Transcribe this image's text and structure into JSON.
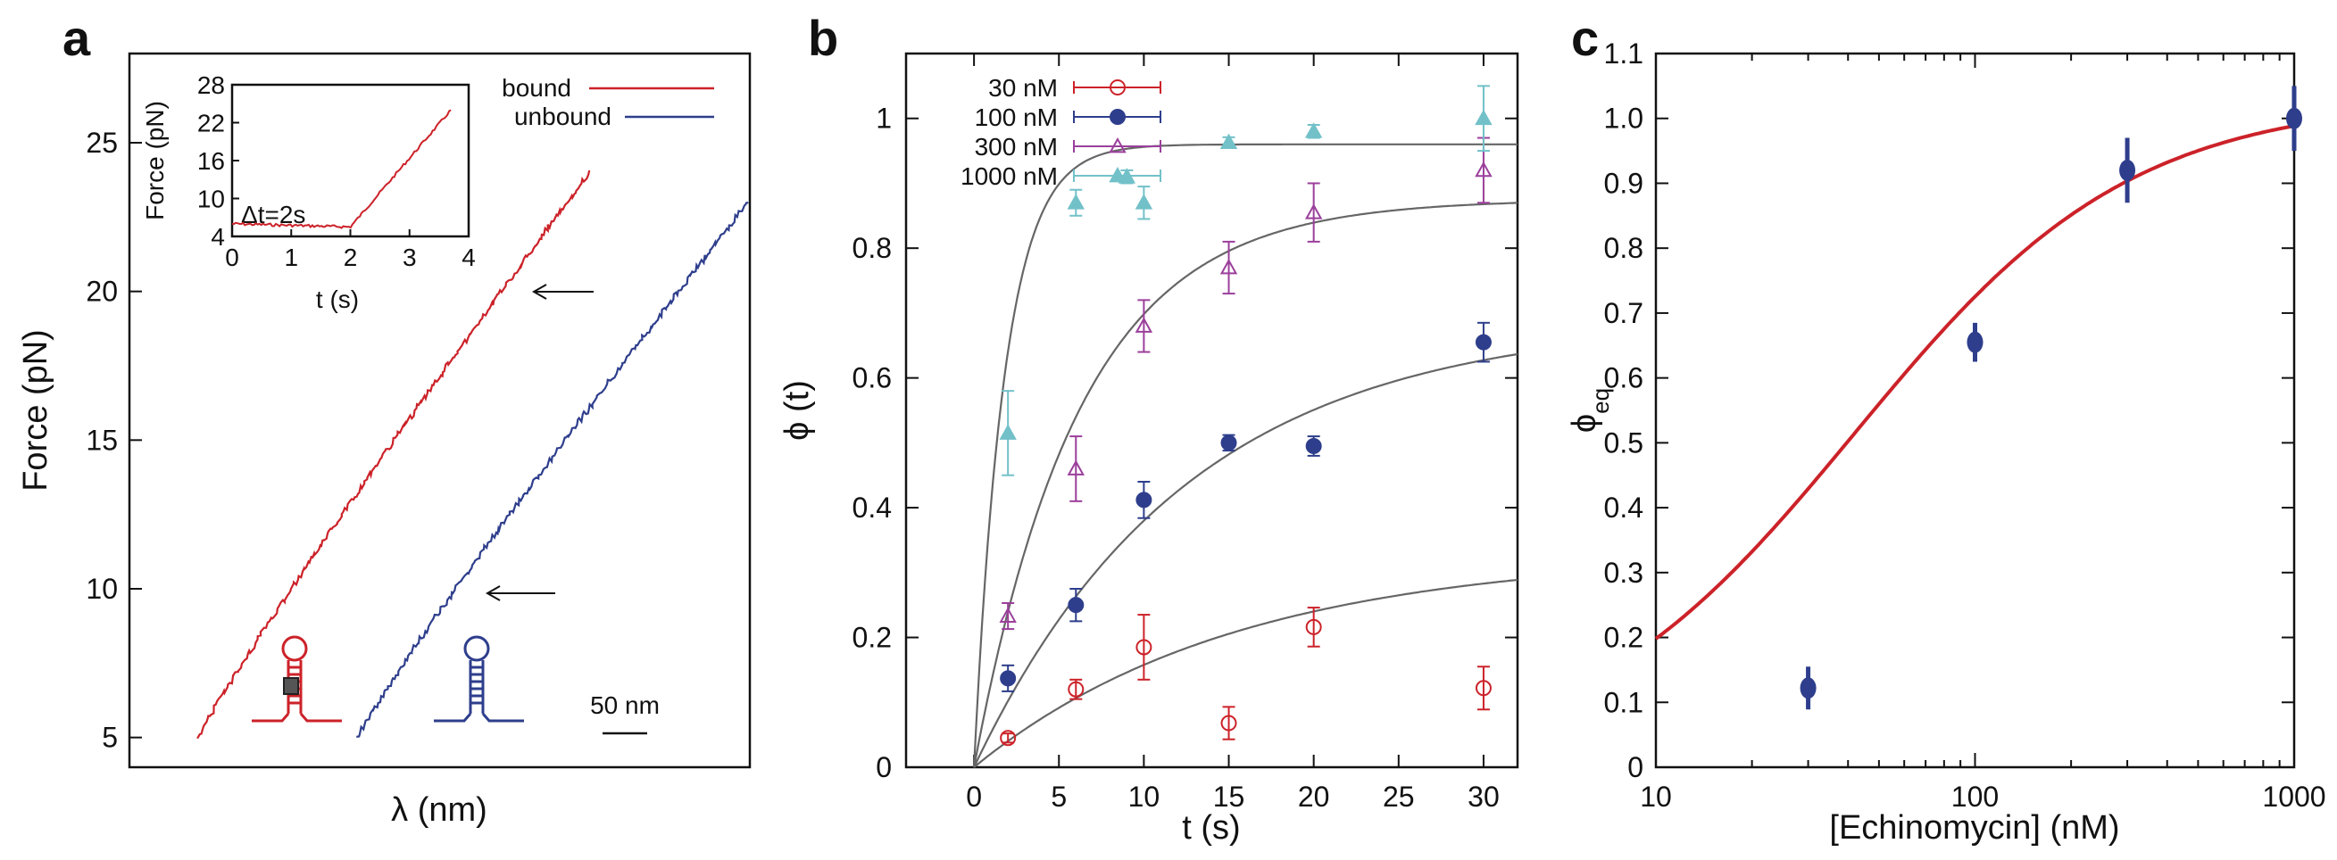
{
  "chart_data": [
    {
      "panel": "a",
      "type": "line",
      "xlabel": "λ (nm)",
      "ylabel": "Force (pN)",
      "ylim": [
        4,
        28
      ],
      "yticks": [
        5,
        10,
        15,
        20,
        25
      ],
      "legend": [
        "bound",
        "unbound"
      ],
      "scale_bar_label": "50 nm",
      "series": [
        {
          "name": "bound",
          "color": "#cc2229",
          "force_range": [
            5,
            24
          ]
        },
        {
          "name": "unbound",
          "color": "#2e3e8c",
          "force_range": [
            5,
            23
          ]
        }
      ],
      "arrows_at_force": [
        20,
        10
      ],
      "inset": {
        "xlabel": "t (s)",
        "ylabel": "Force (pN)",
        "xlim": [
          0,
          4
        ],
        "xticks": [
          0,
          1,
          2,
          3,
          4
        ],
        "ylim": [
          4,
          28
        ],
        "yticks": [
          4,
          10,
          16,
          22,
          28
        ],
        "annotation": "Δt=2s",
        "x": [
          0,
          1.9,
          2.0,
          3.7
        ],
        "y": [
          6,
          5.5,
          5.5,
          24
        ]
      }
    },
    {
      "panel": "b",
      "type": "scatter",
      "xlabel": "t (s)",
      "ylabel": "ϕ (t)",
      "xlim": [
        -4,
        32
      ],
      "xticks": [
        0,
        5,
        10,
        15,
        20,
        25,
        30
      ],
      "ylim": [
        0,
        1.1
      ],
      "yticks": [
        0,
        0.2,
        0.4,
        0.6,
        0.8,
        1
      ],
      "x": [
        2,
        6,
        10,
        15,
        20,
        30
      ],
      "series": [
        {
          "name": "30 nM",
          "color": "#cc2229",
          "marker": "open-circle",
          "values": [
            0.045,
            0.12,
            0.185,
            0.068,
            0.216,
            0.122
          ],
          "errors": [
            0.007,
            0.015,
            0.05,
            0.025,
            0.03,
            0.033
          ],
          "fit": {
            "amplitude": 0.33,
            "rate": 0.065
          }
        },
        {
          "name": "100 nM",
          "color": "#2e3e8c",
          "marker": "filled-circle",
          "values": [
            0.137,
            0.25,
            0.412,
            0.5,
            0.495,
            0.655
          ],
          "errors": [
            0.02,
            0.025,
            0.028,
            0.012,
            0.015,
            0.03
          ],
          "fit": {
            "amplitude": 0.69,
            "rate": 0.08
          }
        },
        {
          "name": "300 nM",
          "color": "#9b3f9b",
          "marker": "open-triangle",
          "values": [
            0.233,
            0.46,
            0.68,
            0.77,
            0.855,
            0.92
          ],
          "errors": [
            0.02,
            0.05,
            0.04,
            0.04,
            0.045,
            0.05
          ],
          "fit": {
            "amplitude": 0.875,
            "rate": 0.16
          }
        },
        {
          "name": "1000 nM",
          "color": "#72c1c9",
          "marker": "filled-triangle",
          "values": [
            0.515,
            0.87,
            0.91,
            0.87,
            0.963,
            0.98,
            1.0
          ],
          "x_override": [
            2,
            6,
            9,
            10,
            15,
            20,
            30
          ],
          "errors": [
            0.065,
            0.02,
            0.01,
            0.025,
            0.008,
            0.01,
            0.05
          ],
          "fit": {
            "amplitude": 0.96,
            "rate": 0.55
          }
        }
      ]
    },
    {
      "panel": "c",
      "type": "scatter",
      "xlabel": "[Echinomycin] (nM)",
      "ylabel": "ϕeq",
      "xscale": "log",
      "xlim": [
        10,
        1000
      ],
      "xticks": [
        10,
        100,
        1000
      ],
      "ylim": [
        0,
        1.1
      ],
      "yticks": [
        0,
        0.1,
        0.2,
        0.3,
        0.4,
        0.5,
        0.6,
        0.7,
        0.8,
        0.9,
        1.0,
        1.1
      ],
      "x": [
        30,
        100,
        300,
        1000
      ],
      "values": [
        0.122,
        0.655,
        0.92,
        1.0
      ],
      "errors": [
        0.033,
        0.03,
        0.05,
        0.05
      ],
      "fit": {
        "color": "#cc2229",
        "model": "Kd hyperbola",
        "kd": 42,
        "amplitude": 1.03
      }
    }
  ]
}
